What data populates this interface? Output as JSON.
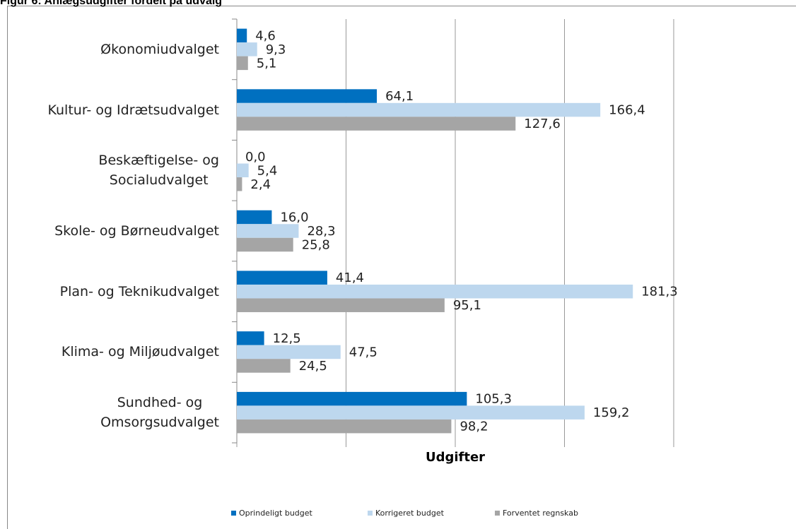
{
  "chart_data": {
    "type": "hbar",
    "title": "Figur 6: Anlægsudgifter fordelt på udvalg",
    "xlabel": "Udgifter",
    "categories": [
      "Økonomiudvalget",
      "Kultur- og Idrætsudvalget",
      "Beskæftigelse- og\nSocialudvalget",
      "Skole- og Børneudvalget",
      "Plan- og Teknikudvalget",
      "Klima- og Miljøudvalget",
      "Sundhed- og\nOmsorgsudvalget"
    ],
    "series": [
      {
        "name": "Oprindeligt budget",
        "color": "#0070c0",
        "values": [
          4.6,
          64.1,
          0.0,
          16.0,
          41.4,
          12.5,
          105.3
        ],
        "value_labels": [
          "4,6",
          "64,1",
          "0,0",
          "16,0",
          "41,4",
          "12,5",
          "105,3"
        ]
      },
      {
        "name": "Korrigeret budget",
        "color": "#bdd7ee",
        "values": [
          9.3,
          166.4,
          5.4,
          28.3,
          181.3,
          47.5,
          159.2
        ],
        "value_labels": [
          "9,3",
          "166,4",
          "5,4",
          "28,3",
          "181,3",
          "47,5",
          "159,2"
        ]
      },
      {
        "name": "Forventet regnskab",
        "color": "#a5a5a5",
        "values": [
          5.1,
          127.6,
          2.4,
          25.8,
          95.1,
          24.5,
          98.2
        ],
        "value_labels": [
          "5,1",
          "127,6",
          "2,4",
          "25,8",
          "95,1",
          "24,5",
          "98,2"
        ]
      }
    ],
    "xlim": [
      0,
      200
    ],
    "xticks": [
      0,
      50,
      100,
      150,
      200
    ],
    "grid": true,
    "legend": "bottom"
  }
}
